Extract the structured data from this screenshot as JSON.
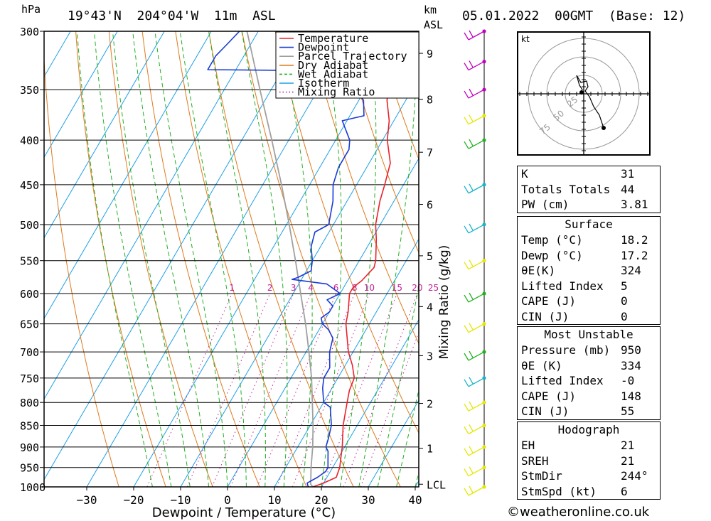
{
  "header": {
    "pressure_unit": "hPa",
    "location": "19°43'N  204°04'W  11m  ASL",
    "height_unit_1": "km",
    "height_unit_2": "ASL",
    "datetime": "05.01.2022  00GMT  (Base: 12)"
  },
  "chart_data": {
    "type": "line",
    "xlabel": "Dewpoint / Temperature (°C)",
    "ylabel_right": "Mixing Ratio (g/kg)",
    "xlim": [
      -40,
      40
    ],
    "x_ticks": [
      -30,
      -20,
      -10,
      0,
      10,
      20,
      30,
      40
    ],
    "ylim": [
      1000,
      300
    ],
    "y_scale": "log",
    "pressure_ticks": [
      300,
      350,
      400,
      450,
      500,
      550,
      600,
      650,
      700,
      750,
      800,
      850,
      900,
      950,
      1000
    ],
    "height_km_ticks": [
      {
        "label": "9",
        "p": 318
      },
      {
        "label": "8",
        "p": 359
      },
      {
        "label": "7",
        "p": 413
      },
      {
        "label": "6",
        "p": 474
      },
      {
        "label": "5",
        "p": 543
      },
      {
        "label": "4",
        "p": 621
      },
      {
        "label": "3",
        "p": 707
      },
      {
        "label": "2",
        "p": 802
      },
      {
        "label": "1",
        "p": 903
      },
      {
        "label": "LCL",
        "p": 993
      }
    ],
    "mixing_ratio_labels": [
      "1",
      "2",
      "3",
      "4",
      "6",
      "8",
      "10",
      "15",
      "20",
      "25"
    ],
    "legend": {
      "placement": "top-right",
      "items": [
        {
          "name": "Temperature",
          "color": "#e8232b",
          "style": "solid"
        },
        {
          "name": "Dewpoint",
          "color": "#1a3ad6",
          "style": "solid"
        },
        {
          "name": "Parcel Trajectory",
          "color": "#a0a0a0",
          "style": "solid"
        },
        {
          "name": "Dry Adiabat",
          "color": "#e07a1c",
          "style": "solid"
        },
        {
          "name": "Wet Adiabat",
          "color": "#22b022",
          "style": "dashed"
        },
        {
          "name": "Isotherm",
          "color": "#1ea0e6",
          "style": "solid"
        },
        {
          "name": "Mixing Ratio",
          "color": "#c0209a",
          "style": "dotted"
        }
      ]
    },
    "series": [
      {
        "name": "Temperature",
        "color": "#e8232b",
        "points": [
          [
            1000,
            18.2
          ],
          [
            990,
            20
          ],
          [
            975,
            22
          ],
          [
            950,
            21.5
          ],
          [
            925,
            20.5
          ],
          [
            900,
            19.5
          ],
          [
            850,
            17
          ],
          [
            800,
            15
          ],
          [
            775,
            14
          ],
          [
            750,
            13.5
          ],
          [
            725,
            11.5
          ],
          [
            700,
            9
          ],
          [
            650,
            5
          ],
          [
            630,
            4
          ],
          [
            600,
            2
          ],
          [
            590,
            2
          ],
          [
            580,
            3
          ],
          [
            560,
            4
          ],
          [
            550,
            3.5
          ],
          [
            520,
            1
          ],
          [
            500,
            -1
          ],
          [
            470,
            -3
          ],
          [
            450,
            -4
          ],
          [
            425,
            -5.5
          ],
          [
            400,
            -9
          ],
          [
            380,
            -11
          ],
          [
            360,
            -14
          ],
          [
            350,
            -15
          ],
          [
            340,
            -15
          ],
          [
            330,
            -14
          ],
          [
            320,
            -13
          ]
        ]
      },
      {
        "name": "Dewpoint",
        "color": "#1a3ad6",
        "points": [
          [
            1000,
            17.2
          ],
          [
            990,
            16.5
          ],
          [
            975,
            18
          ],
          [
            960,
            19
          ],
          [
            950,
            19
          ],
          [
            930,
            18
          ],
          [
            910,
            17
          ],
          [
            900,
            16
          ],
          [
            880,
            15.5
          ],
          [
            850,
            14.5
          ],
          [
            810,
            12
          ],
          [
            800,
            10
          ],
          [
            770,
            8
          ],
          [
            750,
            7
          ],
          [
            730,
            7
          ],
          [
            700,
            5
          ],
          [
            675,
            4
          ],
          [
            660,
            2
          ],
          [
            650,
            0
          ],
          [
            640,
            -1
          ],
          [
            630,
            0
          ],
          [
            620,
            0
          ],
          [
            610,
            -2
          ],
          [
            600,
            0
          ],
          [
            585,
            -4
          ],
          [
            578,
            -12
          ],
          [
            575,
            -11
          ],
          [
            565,
            -9
          ],
          [
            550,
            -10
          ],
          [
            530,
            -12
          ],
          [
            510,
            -13
          ],
          [
            500,
            -11
          ],
          [
            470,
            -13
          ],
          [
            450,
            -15
          ],
          [
            430,
            -16
          ],
          [
            410,
            -16
          ],
          [
            400,
            -17
          ],
          [
            380,
            -21
          ],
          [
            375,
            -17
          ],
          [
            360,
            -19
          ],
          [
            350,
            -22
          ],
          [
            340,
            -26
          ],
          [
            333,
            -30
          ],
          [
            332,
            -56
          ],
          [
            320,
            -56
          ],
          [
            310,
            -55
          ],
          [
            300,
            -54
          ]
        ]
      },
      {
        "name": "Parcel Trajectory",
        "color": "#a0a0a0",
        "points": [
          [
            1000,
            18.2
          ],
          [
            993,
            17.4
          ],
          [
            950,
            15.4
          ],
          [
            900,
            13.2
          ],
          [
            850,
            10.6
          ],
          [
            800,
            7.6
          ],
          [
            750,
            4.4
          ],
          [
            700,
            0.6
          ],
          [
            650,
            -3.6
          ],
          [
            600,
            -8.4
          ],
          [
            550,
            -13.6
          ],
          [
            500,
            -19.4
          ],
          [
            450,
            -26
          ],
          [
            400,
            -33.6
          ],
          [
            350,
            -42.4
          ],
          [
            300,
            -52.4
          ]
        ]
      }
    ],
    "wind_barbs": [
      {
        "p": 300,
        "color": "#c000c0"
      },
      {
        "p": 325,
        "color": "#c000c0"
      },
      {
        "p": 350,
        "color": "#c000c0"
      },
      {
        "p": 375,
        "color": "#e6e600"
      },
      {
        "p": 400,
        "color": "#22b022"
      },
      {
        "p": 450,
        "color": "#18b4c8"
      },
      {
        "p": 500,
        "color": "#18b4c8"
      },
      {
        "p": 550,
        "color": "#e6e600"
      },
      {
        "p": 600,
        "color": "#22b022"
      },
      {
        "p": 650,
        "color": "#e6e600"
      },
      {
        "p": 700,
        "color": "#22b022"
      },
      {
        "p": 750,
        "color": "#18b4c8"
      },
      {
        "p": 800,
        "color": "#e6e600"
      },
      {
        "p": 850,
        "color": "#e6e600"
      },
      {
        "p": 900,
        "color": "#e6e600"
      },
      {
        "p": 950,
        "color": "#e6e600"
      },
      {
        "p": 1000,
        "color": "#e6e600"
      }
    ]
  },
  "hodograph": {
    "unit": "kt",
    "ring_labels": [
      "25",
      "50",
      "75"
    ]
  },
  "indices": [
    {
      "key": "K",
      "value": "31"
    },
    {
      "key": "Totals Totals",
      "value": "44"
    },
    {
      "key": "PW (cm)",
      "value": "3.81"
    }
  ],
  "surface": {
    "title": "Surface",
    "rows": [
      {
        "key": "Temp (°C)",
        "value": "18.2"
      },
      {
        "key": "Dewp (°C)",
        "value": "17.2"
      },
      {
        "key": "θE(K)",
        "value": "324"
      },
      {
        "key": "Lifted Index",
        "value": "5"
      },
      {
        "key": "CAPE (J)",
        "value": "0"
      },
      {
        "key": "CIN (J)",
        "value": "0"
      }
    ]
  },
  "most_unstable": {
    "title": "Most Unstable",
    "rows": [
      {
        "key": "Pressure (mb)",
        "value": "950"
      },
      {
        "key": "θE (K)",
        "value": "334"
      },
      {
        "key": "Lifted Index",
        "value": "-0"
      },
      {
        "key": "CAPE (J)",
        "value": "148"
      },
      {
        "key": "CIN (J)",
        "value": "55"
      }
    ]
  },
  "hodograph_panel": {
    "title": "Hodograph",
    "rows": [
      {
        "key": "EH",
        "value": "21"
      },
      {
        "key": "SREH",
        "value": "21"
      },
      {
        "key": "StmDir",
        "value": "244°"
      },
      {
        "key": "StmSpd (kt)",
        "value": "6"
      }
    ]
  },
  "copyright": "©weatheronline.co.uk"
}
